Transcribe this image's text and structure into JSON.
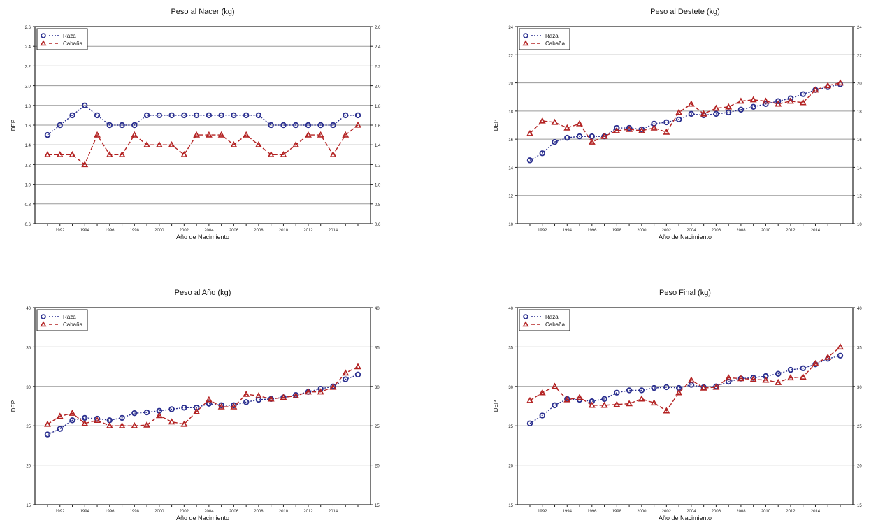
{
  "colors": {
    "raza": "#2a2f8f",
    "cabana": "#b32222",
    "grid": "#9a9a9a",
    "axis": "#222222"
  },
  "chart_data": [
    {
      "type": "line",
      "title": "Peso al Nacer (kg)",
      "xlabel": "Año de Nacimiento",
      "ylabel": "DEP",
      "x": [
        1991,
        1992,
        1993,
        1994,
        1995,
        1996,
        1997,
        1998,
        1999,
        2000,
        2001,
        2002,
        2003,
        2004,
        2005,
        2006,
        2007,
        2008,
        2009,
        2010,
        2011,
        2012,
        2013,
        2014,
        2015,
        2016
      ],
      "xticks": [
        "1992",
        "1994",
        "1996",
        "1998",
        "2000",
        "2002",
        "2004",
        "2006",
        "2008",
        "2010",
        "2012",
        "2014"
      ],
      "ylim": [
        0.6,
        2.6
      ],
      "yticks": [
        "0.6",
        "0.8",
        "1.0",
        "1.2",
        "1.4",
        "1.6",
        "1.8",
        "2.0",
        "2.2",
        "2.4",
        "2.6"
      ],
      "grid": true,
      "legend": "top-left",
      "series": [
        {
          "name": "Raza",
          "values": [
            1.5,
            1.6,
            1.7,
            1.8,
            1.7,
            1.6,
            1.6,
            1.6,
            1.7,
            1.7,
            1.7,
            1.7,
            1.7,
            1.7,
            1.7,
            1.7,
            1.7,
            1.7,
            1.6,
            1.6,
            1.6,
            1.6,
            1.6,
            1.6,
            1.7,
            1.7
          ]
        },
        {
          "name": "Cabaña",
          "values": [
            1.3,
            1.3,
            1.3,
            1.2,
            1.5,
            1.3,
            1.3,
            1.5,
            1.4,
            1.4,
            1.4,
            1.3,
            1.5,
            1.5,
            1.5,
            1.4,
            1.5,
            1.4,
            1.3,
            1.3,
            1.4,
            1.5,
            1.5,
            1.3,
            1.5,
            1.6
          ]
        }
      ]
    },
    {
      "type": "line",
      "title": "Peso al Destete (kg)",
      "xlabel": "Año de Nacimiento",
      "ylabel": "DEP",
      "x": [
        1991,
        1992,
        1993,
        1994,
        1995,
        1996,
        1997,
        1998,
        1999,
        2000,
        2001,
        2002,
        2003,
        2004,
        2005,
        2006,
        2007,
        2008,
        2009,
        2010,
        2011,
        2012,
        2013,
        2014,
        2015,
        2016
      ],
      "xticks": [
        "1992",
        "1994",
        "1996",
        "1998",
        "2000",
        "2002",
        "2004",
        "2006",
        "2008",
        "2010",
        "2012",
        "2014"
      ],
      "ylim": [
        10,
        24
      ],
      "yticks": [
        "10",
        "12",
        "14",
        "16",
        "18",
        "20",
        "22",
        "24"
      ],
      "grid": true,
      "legend": "top-left",
      "series": [
        {
          "name": "Raza",
          "values": [
            14.5,
            15.0,
            15.8,
            16.1,
            16.2,
            16.2,
            16.2,
            16.8,
            16.8,
            16.7,
            17.1,
            17.2,
            17.4,
            17.8,
            17.7,
            17.8,
            17.9,
            18.1,
            18.3,
            18.5,
            18.7,
            18.9,
            19.2,
            19.5,
            19.7,
            19.9
          ]
        },
        {
          "name": "Cabaña",
          "values": [
            16.4,
            17.3,
            17.2,
            16.8,
            17.1,
            15.8,
            16.2,
            16.6,
            16.7,
            16.6,
            16.8,
            16.5,
            17.9,
            18.5,
            17.8,
            18.2,
            18.3,
            18.7,
            18.8,
            18.7,
            18.5,
            18.7,
            18.6,
            19.5,
            19.8,
            20.0
          ]
        }
      ]
    },
    {
      "type": "line",
      "title": "Peso al Año (kg)",
      "xlabel": "Año de Nacimiento",
      "ylabel": "DEP",
      "x": [
        1991,
        1992,
        1993,
        1994,
        1995,
        1996,
        1997,
        1998,
        1999,
        2000,
        2001,
        2002,
        2003,
        2004,
        2005,
        2006,
        2007,
        2008,
        2009,
        2010,
        2011,
        2012,
        2013,
        2014,
        2015,
        2016
      ],
      "xticks": [
        "1992",
        "1994",
        "1996",
        "1998",
        "2000",
        "2002",
        "2004",
        "2006",
        "2008",
        "2010",
        "2012",
        "2014"
      ],
      "ylim": [
        15,
        40
      ],
      "yticks": [
        "15",
        "20",
        "25",
        "30",
        "35",
        "40"
      ],
      "grid": true,
      "legend": "top-left",
      "series": [
        {
          "name": "Raza",
          "values": [
            23.9,
            24.6,
            25.7,
            26.0,
            25.9,
            25.7,
            26.0,
            26.6,
            26.7,
            26.9,
            27.1,
            27.3,
            27.3,
            27.8,
            27.6,
            27.6,
            28.0,
            28.3,
            28.4,
            28.6,
            28.9,
            29.3,
            29.7,
            30.0,
            30.9,
            31.5
          ]
        },
        {
          "name": "Cabaña",
          "values": [
            25.2,
            26.2,
            26.6,
            25.3,
            25.7,
            25.0,
            25.0,
            25.0,
            25.1,
            26.3,
            25.5,
            25.2,
            26.8,
            28.3,
            27.4,
            27.4,
            29.0,
            28.8,
            28.4,
            28.6,
            28.8,
            29.3,
            29.3,
            29.9,
            31.7,
            32.5
          ]
        }
      ]
    },
    {
      "type": "line",
      "title": "Peso Final (kg)",
      "xlabel": "Año de Nacimiento",
      "ylabel": "DEP",
      "x": [
        1991,
        1992,
        1993,
        1994,
        1995,
        1996,
        1997,
        1998,
        1999,
        2000,
        2001,
        2002,
        2003,
        2004,
        2005,
        2006,
        2007,
        2008,
        2009,
        2010,
        2011,
        2012,
        2013,
        2014,
        2015,
        2016
      ],
      "xticks": [
        "1992",
        "1994",
        "1996",
        "1998",
        "2000",
        "2002",
        "2004",
        "2006",
        "2008",
        "2010",
        "2012",
        "2014"
      ],
      "ylim": [
        15,
        40
      ],
      "yticks": [
        "15",
        "20",
        "25",
        "30",
        "35",
        "40"
      ],
      "grid": true,
      "legend": "top-left",
      "series": [
        {
          "name": "Raza",
          "values": [
            25.3,
            26.3,
            27.6,
            28.4,
            28.3,
            28.1,
            28.4,
            29.2,
            29.5,
            29.5,
            29.8,
            29.9,
            29.8,
            30.2,
            29.9,
            30.0,
            30.6,
            31.0,
            31.1,
            31.3,
            31.6,
            32.1,
            32.3,
            32.8,
            33.5,
            33.9
          ]
        },
        {
          "name": "Cabaña",
          "values": [
            28.2,
            29.2,
            30.0,
            28.3,
            28.6,
            27.6,
            27.6,
            27.7,
            27.8,
            28.4,
            27.9,
            26.9,
            29.2,
            30.8,
            29.8,
            29.9,
            31.1,
            31.0,
            30.9,
            30.8,
            30.5,
            31.1,
            31.2,
            32.9,
            33.7,
            35.0
          ]
        }
      ]
    }
  ]
}
